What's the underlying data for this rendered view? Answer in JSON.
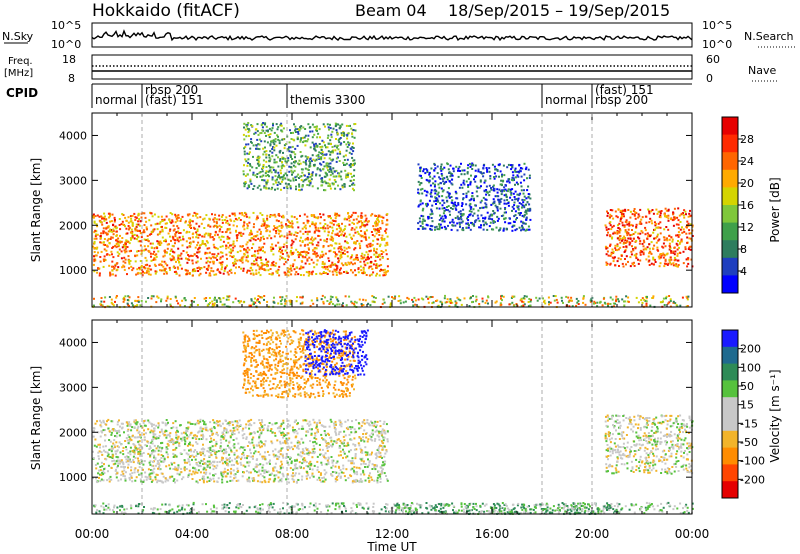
{
  "header": {
    "station": "Hokkaido (fitACF)",
    "beam": "Beam 04",
    "date_range": "18/Sep/2015 – 19/Sep/2015"
  },
  "nsky_panel": {
    "label": "N.Sky",
    "y_ticks": [
      "10^5",
      "10^0"
    ],
    "right_label": "N.Search",
    "right_ticks": [
      "10^5",
      "10^0"
    ]
  },
  "freq_panel": {
    "label": "Freq.\n[MHz]",
    "label_lines": [
      "Freq.",
      "[MHz]"
    ],
    "y_ticks": [
      "18",
      "8"
    ],
    "right_label": "Nave",
    "right_ticks": [
      "60",
      "0"
    ]
  },
  "cpid": {
    "label": "CPID",
    "segments": [
      {
        "start": 0.0,
        "end": 2.0,
        "lines": [
          "normal"
        ]
      },
      {
        "start": 2.0,
        "end": 7.8,
        "lines": [
          "rbsp 200",
          "(fast) 151"
        ]
      },
      {
        "start": 7.8,
        "end": 18.0,
        "lines": [
          "themis 3300"
        ]
      },
      {
        "start": 18.0,
        "end": 20.0,
        "lines": [
          "normal"
        ]
      },
      {
        "start": 20.0,
        "end": 24.0,
        "lines": [
          "(fast) 151",
          "rbsp 200"
        ]
      }
    ]
  },
  "colors": {
    "power_scale": [
      "#0000ff",
      "#1f3fbf",
      "#2e7d5e",
      "#3fa04a",
      "#7fc73a",
      "#d4d400",
      "#ffaa00",
      "#ff6600",
      "#ff2a00",
      "#e60000"
    ],
    "velocity_scale": [
      "#1a1aff",
      "#1f6a8f",
      "#2e8b57",
      "#56c23d",
      "#c8c8c8",
      "#c8c8c8",
      "#f2b42a",
      "#ff8c00",
      "#ff4500",
      "#e60000"
    ]
  },
  "chart_data": [
    {
      "type": "heatmap",
      "title": "",
      "xlabel": "Time UT",
      "ylabel": "Slant Range [km]",
      "xlim": [
        0,
        24
      ],
      "ylim": [
        180,
        4500
      ],
      "x_ticks": [
        "00:00",
        "04:00",
        "08:00",
        "12:00",
        "16:00",
        "20:00",
        "00:00"
      ],
      "y_ticks": [
        1000,
        2000,
        3000,
        4000
      ],
      "colorbar": {
        "label": "Power [dB]",
        "ticks": [
          "28",
          "24",
          "20",
          "16",
          "12",
          "8",
          "4"
        ],
        "range": [
          0,
          30
        ]
      },
      "echo_regions": [
        {
          "desc": "main band",
          "x": [
            0.0,
            11.8
          ],
          "range_km": [
            900,
            2300
          ],
          "value_db": 22
        },
        {
          "desc": "upper patches",
          "x": [
            6.0,
            10.5
          ],
          "range_km": [
            2800,
            4300
          ],
          "value_db": 10
        },
        {
          "desc": "blue arc",
          "x": [
            13.0,
            17.5
          ],
          "range_km": [
            1900,
            3400
          ],
          "value_db": 4
        },
        {
          "desc": "evening band",
          "x": [
            20.5,
            24.0
          ],
          "range_km": [
            1100,
            2400
          ],
          "value_db": 24
        }
      ]
    },
    {
      "type": "heatmap",
      "title": "",
      "xlabel": "Time UT",
      "ylabel": "Slant Range [km]",
      "xlim": [
        0,
        24
      ],
      "ylim": [
        180,
        4500
      ],
      "x_ticks": [
        "00:00",
        "04:00",
        "08:00",
        "12:00",
        "16:00",
        "20:00",
        "00:00"
      ],
      "y_ticks": [
        1000,
        2000,
        3000,
        4000
      ],
      "colorbar": {
        "label": "Velocity [m s⁻¹]",
        "ticks": [
          "200",
          "100",
          "50",
          "15",
          "-15",
          "-50",
          "-100",
          "-200"
        ],
        "range": [
          -250,
          250
        ]
      },
      "echo_regions": [
        {
          "desc": "main band",
          "x": [
            0.0,
            11.8
          ],
          "range_km": [
            900,
            2300
          ],
          "value_ms": 0
        },
        {
          "desc": "upper patches",
          "x": [
            6.0,
            10.5
          ],
          "range_km": [
            2800,
            4300
          ],
          "value_ms": -60
        },
        {
          "desc": "blue patches",
          "x": [
            8.5,
            11.0
          ],
          "range_km": [
            3300,
            4300
          ],
          "value_ms": 200
        },
        {
          "desc": "evening band",
          "x": [
            20.5,
            24.0
          ],
          "range_km": [
            1100,
            2400
          ],
          "value_ms": 0
        },
        {
          "desc": "ground scatter",
          "x": [
            12.0,
            21.0
          ],
          "range_km": [
            200,
            450
          ],
          "value_ms": 30
        }
      ]
    }
  ]
}
